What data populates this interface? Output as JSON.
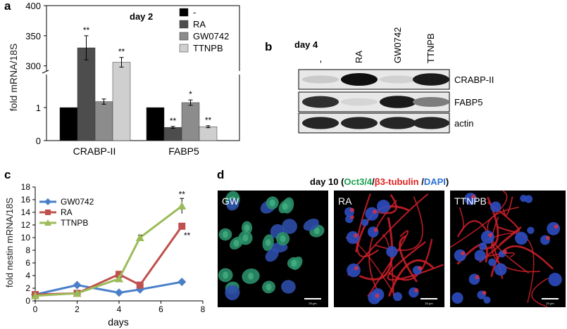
{
  "panels": {
    "a": {
      "letter": "a",
      "chart_data": {
        "type": "bar",
        "annotation": "day 2",
        "ylabel": "fold mRNA/18S",
        "categories": [
          "CRABP-II",
          "FABP5"
        ],
        "series": [
          {
            "name": "-",
            "color": "#000000",
            "values": [
              1,
              1
            ],
            "errors": [
              0,
              0
            ],
            "sig": [
              "",
              ""
            ]
          },
          {
            "name": "RA",
            "color": "#4d4d4d",
            "values": [
              330,
              0.4
            ],
            "errors": [
              20,
              0.03
            ],
            "sig": [
              "**",
              "**"
            ]
          },
          {
            "name": "GW0742",
            "color": "#8c8c8c",
            "values": [
              1.18,
              1.15
            ],
            "errors": [
              0.08,
              0.08
            ],
            "sig": [
              "",
              "*"
            ]
          },
          {
            "name": "TTNPB",
            "color": "#cfcfcf",
            "values": [
              306,
              0.42
            ],
            "errors": [
              8,
              0.03
            ],
            "sig": [
              "**",
              "**"
            ]
          }
        ],
        "y_axis_breaks": {
          "lower_ticks": [
            "0",
            "1"
          ],
          "upper_ticks": [
            "300",
            "350",
            "400"
          ],
          "lower_range": [
            0,
            2
          ],
          "upper_range": [
            295,
            400
          ]
        },
        "legend_position": "top-right"
      }
    },
    "b": {
      "letter": "b",
      "annotation": "day 4",
      "lanes": [
        "-",
        "RA",
        "GW0742",
        "TTNPB"
      ],
      "rows": [
        {
          "label": "CRABP-II",
          "intensity": [
            0.15,
            1.0,
            0.12,
            0.95
          ]
        },
        {
          "label": "FABP5",
          "intensity": [
            0.85,
            0.1,
            0.95,
            0.5
          ]
        },
        {
          "label": "actin",
          "intensity": [
            0.9,
            0.9,
            0.9,
            0.9
          ]
        }
      ]
    },
    "c": {
      "letter": "c",
      "chart_data": {
        "type": "line",
        "xlabel": "days",
        "ylabel": "fold nestin mRNA/18S",
        "xlim": [
          0,
          8
        ],
        "ylim": [
          0,
          18
        ],
        "xticks": [
          0,
          2,
          4,
          6,
          8
        ],
        "yticks": [
          0,
          2,
          4,
          6,
          8,
          10,
          12,
          14,
          16,
          18
        ],
        "x": [
          0,
          2,
          4,
          5,
          7
        ],
        "legend_position": "top-left",
        "series": [
          {
            "name": "GW0742",
            "color": "#4a7fc8",
            "marker": "diamond",
            "values": [
              1.0,
              2.5,
              1.3,
              1.8,
              3.0
            ],
            "errors": [
              0.1,
              0.1,
              0.1,
              0.1,
              0.3
            ]
          },
          {
            "name": "RA",
            "color": "#c0504d",
            "marker": "square",
            "values": [
              1.0,
              1.2,
              4.2,
              2.5,
              11.8
            ],
            "errors": [
              0.1,
              0.1,
              0.2,
              0.2,
              0.4
            ]
          },
          {
            "name": "TTNPB",
            "color": "#9bbb59",
            "marker": "triangle",
            "values": [
              0.8,
              1.2,
              3.5,
              10.0,
              15.0
            ],
            "errors": [
              0.1,
              0.1,
              0.2,
              0.4,
              1.2
            ]
          }
        ],
        "sig_labels": [
          {
            "text": "**",
            "x": 7,
            "y": 16.4
          },
          {
            "text": "**",
            "x": 7.25,
            "y": 9.9
          }
        ]
      }
    },
    "d": {
      "letter": "d",
      "title_parts": [
        {
          "text": "day 10 (",
          "color": "#000000"
        },
        {
          "text": "Oct3/4",
          "color": "#1aa050"
        },
        {
          "text": "/",
          "color": "#000000"
        },
        {
          "text": "β3-tubulin ",
          "color": "#e02020"
        },
        {
          "text": "/",
          "color": "#000000"
        },
        {
          "text": "DAPI",
          "color": "#2a6fd6"
        },
        {
          "text": ")",
          "color": "#000000"
        }
      ],
      "images": [
        {
          "label": "GW",
          "scale": "20 µm"
        },
        {
          "label": "RA",
          "scale": "20 µm"
        },
        {
          "label": "TTNPB",
          "scale": "20 µm"
        }
      ]
    }
  }
}
